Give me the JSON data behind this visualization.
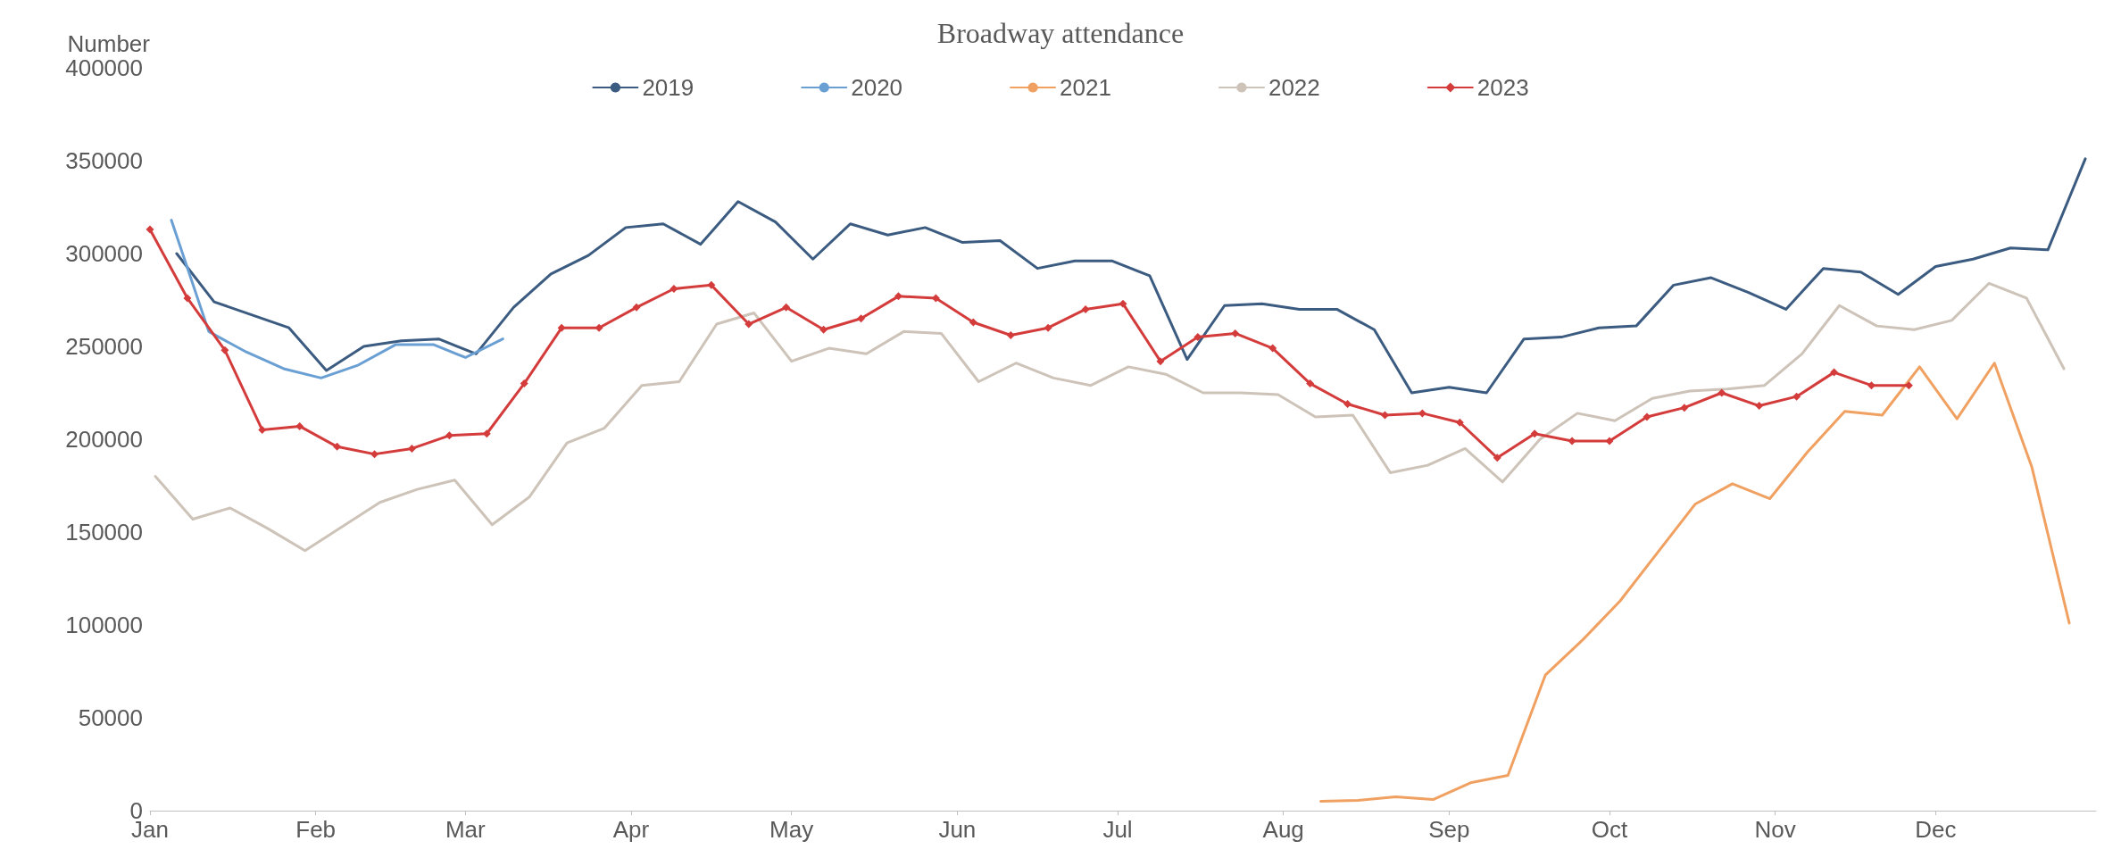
{
  "chart_data": {
    "type": "line",
    "title": "Broadway attendance",
    "ylabel": "Number",
    "xlim": [
      "--01-01",
      "--12-31"
    ],
    "xticks": [
      {
        "value": "--01-01",
        "label": "Jan"
      },
      {
        "value": "--02-01",
        "label": "Feb"
      },
      {
        "value": "--03-01",
        "label": "Mar"
      },
      {
        "value": "--04-01",
        "label": "Apr"
      },
      {
        "value": "--05-01",
        "label": "May"
      },
      {
        "value": "--06-01",
        "label": "Jun"
      },
      {
        "value": "--07-01",
        "label": "Jul"
      },
      {
        "value": "--08-01",
        "label": "Aug"
      },
      {
        "value": "--09-01",
        "label": "Sep"
      },
      {
        "value": "--10-01",
        "label": "Oct"
      },
      {
        "value": "--11-01",
        "label": "Nov"
      },
      {
        "value": "--12-01",
        "label": "Dec"
      }
    ],
    "ylim": [
      0,
      400000
    ],
    "yticks": [
      0,
      50000,
      100000,
      150000,
      200000,
      250000,
      300000,
      350000,
      400000
    ],
    "grid": false,
    "legend": "top",
    "marker": "none",
    "line_style": "solid",
    "series": [
      {
        "name": "2019",
        "color": "#3b5b80",
        "x": [
          "--01-06",
          "--01-13",
          "--01-20",
          "--01-27",
          "--02-03",
          "--02-10",
          "--02-17",
          "--02-24",
          "--03-03",
          "--03-10",
          "--03-17",
          "--03-24",
          "--03-31",
          "--04-07",
          "--04-14",
          "--04-21",
          "--04-28",
          "--05-05",
          "--05-12",
          "--05-19",
          "--05-26",
          "--06-02",
          "--06-09",
          "--06-16",
          "--06-23",
          "--06-30",
          "--07-07",
          "--07-14",
          "--07-21",
          "--07-28",
          "--08-04",
          "--08-11",
          "--08-18",
          "--08-25",
          "--09-01",
          "--09-08",
          "--09-15",
          "--09-22",
          "--09-29",
          "--10-06",
          "--10-13",
          "--10-20",
          "--10-27",
          "--11-03",
          "--11-10",
          "--11-17",
          "--11-24",
          "--12-01",
          "--12-08",
          "--12-15",
          "--12-22",
          "--12-29"
        ],
        "values": [
          300000,
          274000,
          267000,
          260000,
          237000,
          250000,
          253000,
          254000,
          246000,
          271000,
          289000,
          299000,
          314000,
          316000,
          305000,
          328000,
          317000,
          297000,
          316000,
          310000,
          314000,
          306000,
          307000,
          292000,
          296000,
          296000,
          288000,
          243000,
          272000,
          273000,
          270000,
          270000,
          259000,
          225000,
          228000,
          225000,
          254000,
          255000,
          260000,
          261000,
          283000,
          287000,
          279000,
          270000,
          292000,
          290000,
          278000,
          293000,
          297000,
          303000,
          302000,
          351000
        ]
      },
      {
        "name": "2020",
        "color": "#6a9fd4",
        "x": [
          "--01-05",
          "--01-12",
          "--01-19",
          "--01-26",
          "--02-02",
          "--02-09",
          "--02-16",
          "--02-23",
          "--03-01",
          "--03-08"
        ],
        "values": [
          318000,
          258000,
          247000,
          238000,
          233000,
          240000,
          251000,
          251000,
          244000,
          254000
        ]
      },
      {
        "name": "2021",
        "color": "#f0a060",
        "x": [
          "--08-08",
          "--08-15",
          "--08-22",
          "--08-29",
          "--09-05",
          "--09-12",
          "--09-19",
          "--09-26",
          "--10-03",
          "--10-10",
          "--10-17",
          "--10-24",
          "--10-31",
          "--11-07",
          "--11-14",
          "--11-21",
          "--11-28",
          "--12-05",
          "--12-12",
          "--12-19",
          "--12-26"
        ],
        "values": [
          5000,
          5500,
          7500,
          6000,
          15000,
          19000,
          73000,
          92000,
          113000,
          139000,
          165000,
          176000,
          168000,
          193000,
          215000,
          213000,
          239000,
          211000,
          241000,
          185000,
          101000
        ]
      },
      {
        "name": "2022",
        "color": "#cdc3b8",
        "x": [
          "--01-02",
          "--01-09",
          "--01-16",
          "--01-23",
          "--01-30",
          "--02-06",
          "--02-13",
          "--02-20",
          "--02-27",
          "--03-06",
          "--03-13",
          "--03-20",
          "--03-27",
          "--04-03",
          "--04-10",
          "--04-17",
          "--04-24",
          "--05-01",
          "--05-08",
          "--05-15",
          "--05-22",
          "--05-29",
          "--06-05",
          "--06-12",
          "--06-19",
          "--06-26",
          "--07-03",
          "--07-10",
          "--07-17",
          "--07-24",
          "--07-31",
          "--08-07",
          "--08-14",
          "--08-21",
          "--08-28",
          "--09-04",
          "--09-11",
          "--09-18",
          "--09-25",
          "--10-02",
          "--10-09",
          "--10-16",
          "--10-23",
          "--10-30",
          "--11-06",
          "--11-13",
          "--11-20",
          "--11-27",
          "--12-04",
          "--12-11",
          "--12-18",
          "--12-25"
        ],
        "values": [
          180000,
          157000,
          163000,
          152000,
          140000,
          153000,
          166000,
          173000,
          178000,
          154000,
          169000,
          198000,
          206000,
          229000,
          231000,
          262000,
          268000,
          242000,
          249000,
          246000,
          258000,
          257000,
          231000,
          241000,
          233000,
          229000,
          239000,
          235000,
          225000,
          225000,
          224000,
          212000,
          213000,
          182000,
          186000,
          195000,
          177000,
          200000,
          214000,
          210000,
          222000,
          226000,
          227000,
          229000,
          246000,
          272000,
          261000,
          259000,
          264000,
          284000,
          276000,
          238000
        ]
      },
      {
        "name": "2023",
        "color": "#d43c3c",
        "marker": "diamond",
        "x": [
          "--01-01",
          "--01-08",
          "--01-15",
          "--01-22",
          "--01-29",
          "--02-05",
          "--02-12",
          "--02-19",
          "--02-26",
          "--03-05",
          "--03-12",
          "--03-19",
          "--03-26",
          "--04-02",
          "--04-09",
          "--04-16",
          "--04-23",
          "--04-30",
          "--05-07",
          "--05-14",
          "--05-21",
          "--05-28",
          "--06-04",
          "--06-11",
          "--06-18",
          "--06-25",
          "--07-02",
          "--07-09",
          "--07-16",
          "--07-23",
          "--07-30",
          "--08-06",
          "--08-13",
          "--08-20",
          "--08-27",
          "--09-03",
          "--09-10",
          "--09-17",
          "--09-24",
          "--10-01",
          "--10-08",
          "--10-15",
          "--10-22",
          "--10-29",
          "--11-05",
          "--11-12",
          "--11-19",
          "--11-26"
        ],
        "values": [
          313000,
          276000,
          248000,
          205000,
          207000,
          196000,
          192000,
          195000,
          202000,
          203000,
          230000,
          260000,
          260000,
          271000,
          281000,
          283000,
          262000,
          271000,
          259000,
          265000,
          277000,
          276000,
          263000,
          256000,
          260000,
          270000,
          273000,
          242000,
          255000,
          257000,
          249000,
          230000,
          219000,
          213000,
          214000,
          209000,
          190000,
          203000,
          199000,
          199000,
          212000,
          217000,
          225000,
          218000,
          223000,
          236000,
          229000,
          229000
        ]
      }
    ]
  }
}
